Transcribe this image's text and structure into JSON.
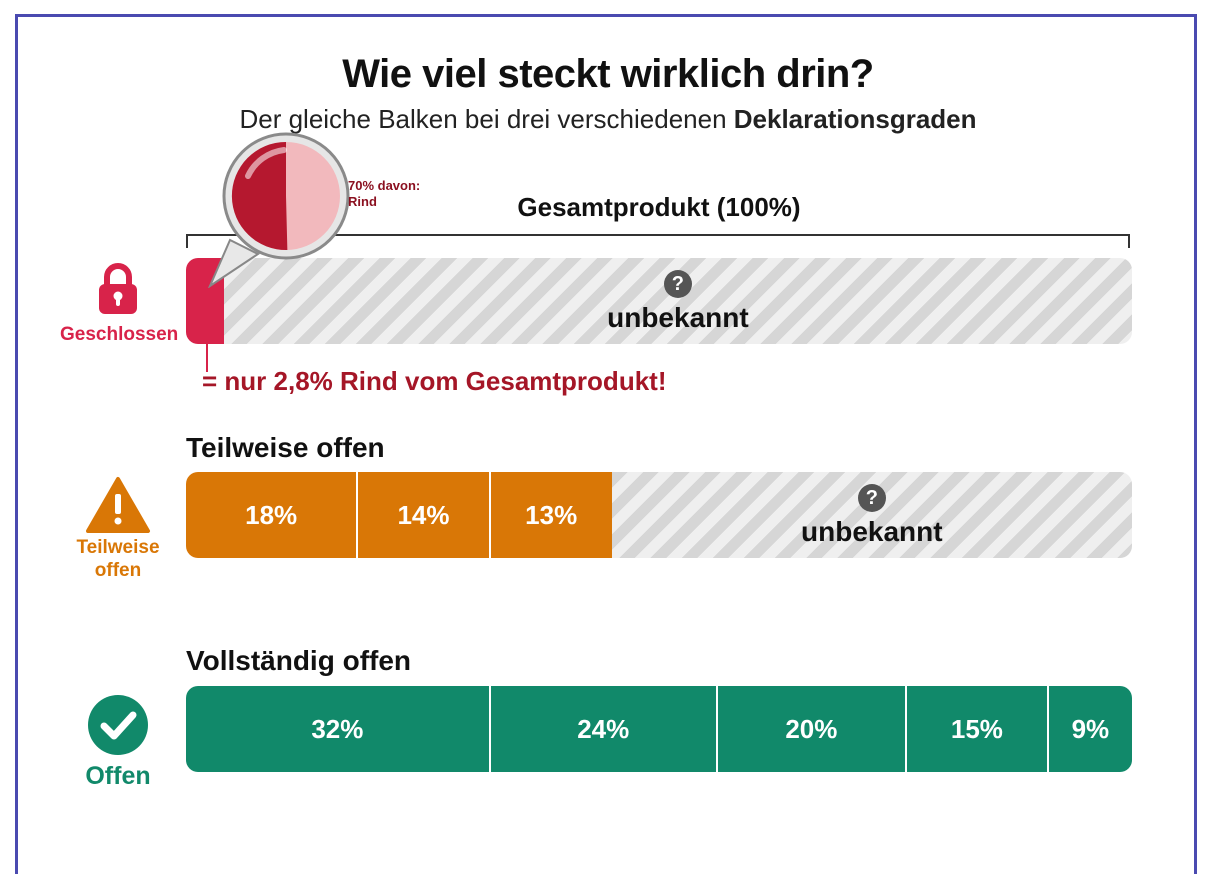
{
  "title": "Wie viel steckt wirklich drin?",
  "subtitle_prefix": "Der gleiche Balken bei drei verschiedenen ",
  "subtitle_bold": "Deklarationsgraden",
  "total_label": "Gesamtprodukt (100%)",
  "colors": {
    "closed": "#d8234a",
    "partial": "#d97706",
    "open": "#11896a",
    "unknown_hatch": "#d6d6d6",
    "note": "#a51627"
  },
  "icons": {
    "closed": "lock-icon",
    "partial": "warning-triangle-icon",
    "open": "checkmark-circle-icon",
    "unknown": "question-mark-icon",
    "callout": "magnifier-pie-icon"
  },
  "chart_data": [
    {
      "type": "bar",
      "name": "Geschlossen",
      "row_label": "",
      "side_label": "Geschlossen",
      "segments": [
        {
          "value": 4,
          "label": ""
        },
        {
          "value": 96,
          "label": "unbekannt",
          "unknown": true
        }
      ],
      "callout": {
        "pie_share_percent": 70,
        "text_line1": "70% davon:",
        "text_line2": "Rind"
      },
      "note": "= nur 2,8% Rind vom Gesamtprodukt!"
    },
    {
      "type": "bar",
      "name": "Teilweise offen",
      "row_label": "Teilweise offen",
      "side_label_line1": "Teilweise",
      "side_label_line2": "offen",
      "segments": [
        {
          "value": 18,
          "label": "18%"
        },
        {
          "value": 14,
          "label": "14%"
        },
        {
          "value": 13,
          "label": "13%"
        },
        {
          "value": 55,
          "label": "unbekannt",
          "unknown": true
        }
      ]
    },
    {
      "type": "bar",
      "name": "Vollständig offen",
      "row_label": "Vollständig offen",
      "side_label": "Offen",
      "segments": [
        {
          "value": 32,
          "label": "32%"
        },
        {
          "value": 24,
          "label": "24%"
        },
        {
          "value": 20,
          "label": "20%"
        },
        {
          "value": 15,
          "label": "15%"
        },
        {
          "value": 9,
          "label": "9%"
        }
      ]
    }
  ]
}
